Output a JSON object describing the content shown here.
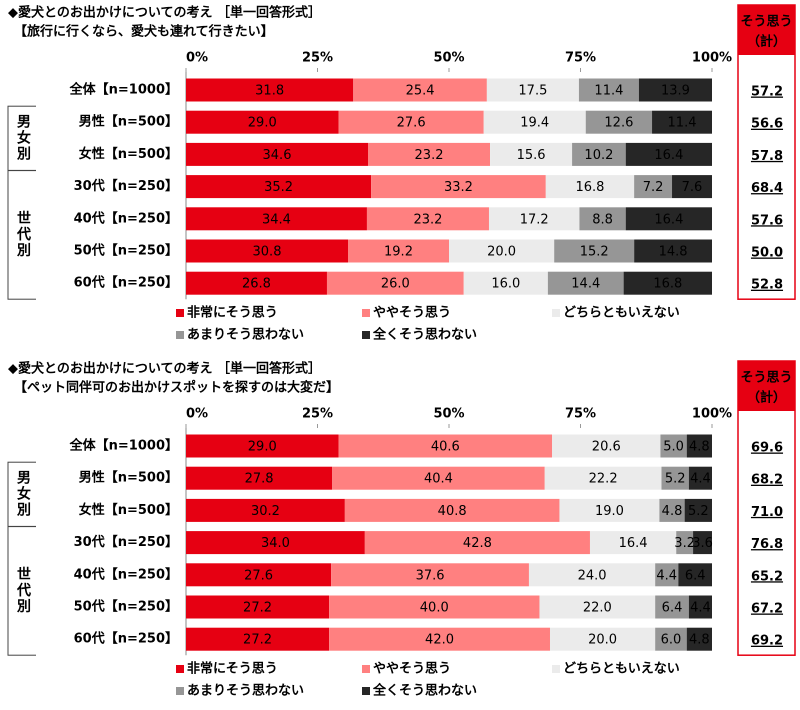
{
  "chart_data": [
    {
      "type": "stacked-bar-horizontal",
      "title": "◆愛犬とのお出かけについての考え ［単一回答形式］",
      "subtitle": "【旅行に行くなら、愛犬も連れて行きたい】",
      "categories": [
        "全体【n=1000】",
        "男性【n=500】",
        "女性【n=500】",
        "30代【n=250】",
        "40代【n=250】",
        "50代【n=250】",
        "60代【n=250】"
      ],
      "groups": [
        "男女別",
        "世代別"
      ],
      "xlim": [
        0,
        100
      ],
      "xticks": [
        {
          "value": 0,
          "label": "0%"
        },
        {
          "value": 25,
          "label": "25%"
        },
        {
          "value": 50,
          "label": "50%"
        },
        {
          "value": 75,
          "label": "75%"
        },
        {
          "value": 100,
          "label": "100%"
        }
      ],
      "series": [
        {
          "name": "非常にそう思う",
          "color": "#e60012",
          "values": [
            31.8,
            29.0,
            34.6,
            35.2,
            34.4,
            30.8,
            26.8
          ],
          "value_labels": [
            "31.8",
            "29.0",
            "34.6",
            "35.2",
            "34.4",
            "30.8",
            "26.8"
          ]
        },
        {
          "name": "ややそう思う",
          "color": "#ff8080",
          "values": [
            25.4,
            27.6,
            23.2,
            33.2,
            23.2,
            19.2,
            26.0
          ],
          "value_labels": [
            "25.4",
            "27.6",
            "23.2",
            "33.2",
            "23.2",
            "19.2",
            "26.0"
          ]
        },
        {
          "name": "どちらともいえない",
          "color": "#ebebeb",
          "values": [
            17.5,
            19.4,
            15.6,
            16.8,
            17.2,
            20.0,
            16.0
          ],
          "value_labels": [
            "17.5",
            "19.4",
            "15.6",
            "16.8",
            "17.2",
            "20.0",
            "16.0"
          ]
        },
        {
          "name": "あまりそう思わない",
          "color": "#969696",
          "values": [
            11.4,
            12.6,
            10.2,
            7.2,
            8.8,
            15.2,
            14.4
          ],
          "value_labels": [
            "11.4",
            "12.6",
            "10.2",
            "7.2",
            "8.8",
            "15.2",
            "14.4"
          ]
        },
        {
          "name": "全くそう思わない",
          "color": "#262626",
          "values": [
            13.9,
            11.4,
            16.4,
            7.6,
            16.4,
            14.8,
            16.8
          ],
          "value_labels": [
            "13.9",
            "11.4",
            "16.4",
            "7.6",
            "16.4",
            "14.8",
            "16.8"
          ]
        }
      ],
      "summary": {
        "title": [
          "そう思う",
          "（計）"
        ],
        "color": "#e60012",
        "values": [
          57.2,
          56.6,
          57.8,
          68.4,
          57.6,
          50.0,
          52.8
        ],
        "value_labels": [
          "57.2",
          "56.6",
          "57.8",
          "68.4",
          "57.6",
          "50.0",
          "52.8"
        ]
      }
    },
    {
      "type": "stacked-bar-horizontal",
      "title": "◆愛犬とのお出かけについての考え ［単一回答形式］",
      "subtitle": "【ペット同伴可のお出かけスポットを探すのは大変だ】",
      "categories": [
        "全体【n=1000】",
        "男性【n=500】",
        "女性【n=500】",
        "30代【n=250】",
        "40代【n=250】",
        "50代【n=250】",
        "60代【n=250】"
      ],
      "groups": [
        "男女別",
        "世代別"
      ],
      "xlim": [
        0,
        100
      ],
      "xticks": [
        {
          "value": 0,
          "label": "0%"
        },
        {
          "value": 25,
          "label": "25%"
        },
        {
          "value": 50,
          "label": "50%"
        },
        {
          "value": 75,
          "label": "75%"
        },
        {
          "value": 100,
          "label": "100%"
        }
      ],
      "series": [
        {
          "name": "非常にそう思う",
          "color": "#e60012",
          "values": [
            29.0,
            27.8,
            30.2,
            34.0,
            27.6,
            27.2,
            27.2
          ],
          "value_labels": [
            "29.0",
            "27.8",
            "30.2",
            "34.0",
            "27.6",
            "27.2",
            "27.2"
          ]
        },
        {
          "name": "ややそう思う",
          "color": "#ff8080",
          "values": [
            40.6,
            40.4,
            40.8,
            42.8,
            37.6,
            40.0,
            42.0
          ],
          "value_labels": [
            "40.6",
            "40.4",
            "40.8",
            "42.8",
            "37.6",
            "40.0",
            "42.0"
          ]
        },
        {
          "name": "どちらともいえない",
          "color": "#ebebeb",
          "values": [
            20.6,
            22.2,
            19.0,
            16.4,
            24.0,
            22.0,
            20.0
          ],
          "value_labels": [
            "20.6",
            "22.2",
            "19.0",
            "16.4",
            "24.0",
            "22.0",
            "20.0"
          ]
        },
        {
          "name": "あまりそう思わない",
          "color": "#969696",
          "values": [
            5.0,
            5.2,
            4.8,
            3.2,
            4.4,
            6.4,
            6.0
          ],
          "value_labels": [
            "5.0",
            "5.2",
            "4.8",
            "3.2",
            "4.4",
            "6.4",
            "6.0"
          ]
        },
        {
          "name": "全くそう思わない",
          "color": "#262626",
          "values": [
            4.8,
            4.4,
            5.2,
            3.6,
            6.4,
            4.4,
            4.8
          ],
          "value_labels": [
            "4.8",
            "4.4",
            "5.2",
            "3.6",
            "6.4",
            "4.4",
            "4.8"
          ]
        }
      ],
      "summary": {
        "title": [
          "そう思う",
          "（計）"
        ],
        "color": "#e60012",
        "values": [
          69.6,
          68.2,
          71.0,
          76.8,
          65.2,
          67.2,
          69.2
        ],
        "value_labels": [
          "69.6",
          "68.2",
          "71.0",
          "76.8",
          "65.2",
          "67.2",
          "69.2"
        ]
      }
    }
  ]
}
